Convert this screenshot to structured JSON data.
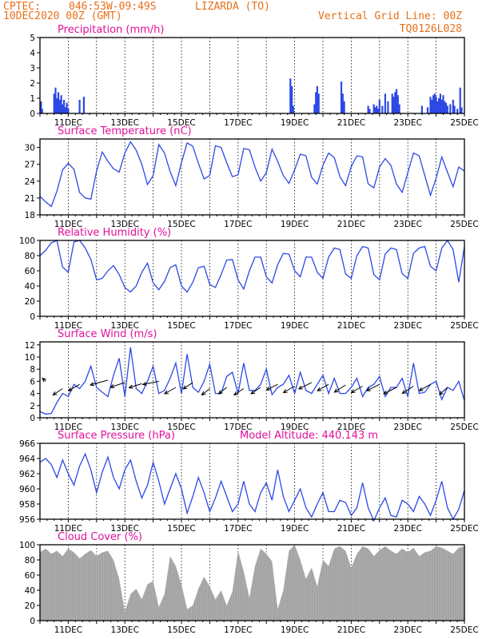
{
  "header": {
    "source": "CPTEC:",
    "coords": "046:53W-09:49S",
    "location": "LIZARDA (TO)",
    "date": "10DEC2020 00Z (GMT)",
    "grid_note": "Vertical Grid Line: 00Z",
    "code": "TQ0126L028"
  },
  "colors": {
    "header": "#e8701a",
    "title": "#e0109a",
    "line": "#2c49e6",
    "bar": "#2c49e6",
    "cloud": "#a3a3a3",
    "wind_arrow": "#000000"
  },
  "chart_data": [
    {
      "id": "precip",
      "type": "bar",
      "title": "Precipitation (mm/h)",
      "ylim": [
        0,
        5
      ],
      "yticks": [
        0,
        1,
        2,
        3,
        4,
        5
      ],
      "xlim_days": [
        10.0,
        25.0
      ],
      "xticks": [
        "11DEC",
        "13DEC",
        "15DEC",
        "17DEC",
        "19DEC",
        "21DEC",
        "23DEC",
        "25DEC"
      ],
      "x_days": [
        10.04,
        10.08,
        10.5,
        10.55,
        10.6,
        10.65,
        10.7,
        10.75,
        10.8,
        10.85,
        10.9,
        10.95,
        11.0,
        11.4,
        11.55,
        18.85,
        18.9,
        18.95,
        19.7,
        19.75,
        19.8,
        19.85,
        20.65,
        20.7,
        20.75,
        21.6,
        21.65,
        21.8,
        21.85,
        21.9,
        21.95,
        22.0,
        22.1,
        22.2,
        22.3,
        22.45,
        22.5,
        22.55,
        22.6,
        22.65,
        22.7,
        23.5,
        23.7,
        23.8,
        23.85,
        23.9,
        23.95,
        24.0,
        24.05,
        24.1,
        24.15,
        24.2,
        24.25,
        24.3,
        24.35,
        24.4,
        24.5,
        24.6,
        24.65,
        24.75,
        24.85,
        24.9
      ],
      "values": [
        0.8,
        0.3,
        1.3,
        1.7,
        1.0,
        1.4,
        0.9,
        1.2,
        0.6,
        0.9,
        0.4,
        0.7,
        0.3,
        0.9,
        1.1,
        2.3,
        1.8,
        0.5,
        0.6,
        1.4,
        1.8,
        1.3,
        2.1,
        1.3,
        0.8,
        0.5,
        0.3,
        0.6,
        0.4,
        0.5,
        0.3,
        0.9,
        0.5,
        1.3,
        0.8,
        1.3,
        1.1,
        1.4,
        1.6,
        1.2,
        0.6,
        0.5,
        0.4,
        1.1,
        0.9,
        1.2,
        1.3,
        1.1,
        0.8,
        1.0,
        1.3,
        0.9,
        1.2,
        0.8,
        0.7,
        0.5,
        0.6,
        0.9,
        0.5,
        0.3,
        1.7,
        0.4
      ]
    },
    {
      "id": "temp",
      "type": "line",
      "title": "Surface Temperature (nC)",
      "ylim": [
        18,
        31.5
      ],
      "yticks": [
        18,
        21,
        24,
        27,
        30
      ],
      "xlim_days": [
        10.0,
        25.0
      ],
      "xticks": [
        "11DEC",
        "13DEC",
        "15DEC",
        "17DEC",
        "19DEC",
        "21DEC",
        "23DEC",
        "25DEC"
      ],
      "x_days": [
        10.0,
        10.2,
        10.4,
        10.6,
        10.8,
        11.0,
        11.2,
        11.4,
        11.6,
        11.8,
        12.0,
        12.2,
        12.4,
        12.6,
        12.8,
        13.0,
        13.2,
        13.4,
        13.6,
        13.8,
        14.0,
        14.2,
        14.4,
        14.6,
        14.8,
        15.0,
        15.2,
        15.4,
        15.6,
        15.8,
        16.0,
        16.2,
        16.4,
        16.6,
        16.8,
        17.0,
        17.2,
        17.4,
        17.6,
        17.8,
        18.0,
        18.2,
        18.4,
        18.6,
        18.8,
        19.0,
        19.2,
        19.4,
        19.6,
        19.8,
        20.0,
        20.2,
        20.4,
        20.6,
        20.8,
        21.0,
        21.2,
        21.4,
        21.6,
        21.8,
        22.0,
        22.2,
        22.4,
        22.6,
        22.8,
        23.0,
        23.2,
        23.4,
        23.6,
        23.8,
        24.0,
        24.2,
        24.4,
        24.6,
        24.8,
        25.0
      ],
      "values": [
        21.3,
        20.3,
        19.5,
        22.2,
        26.0,
        27.2,
        26.1,
        22.0,
        21.0,
        20.8,
        25.8,
        29.2,
        27.5,
        26.2,
        25.6,
        29.0,
        31.0,
        29.5,
        27.0,
        23.4,
        25.0,
        30.5,
        29.0,
        25.7,
        23.2,
        27.3,
        30.8,
        30.2,
        27.2,
        24.4,
        25.0,
        30.3,
        30.0,
        27.3,
        24.8,
        25.1,
        29.8,
        29.6,
        26.5,
        24.0,
        25.5,
        29.7,
        27.5,
        25.0,
        23.6,
        26.0,
        28.8,
        28.5,
        24.7,
        23.5,
        26.8,
        29.0,
        28.2,
        24.8,
        23.2,
        26.6,
        28.5,
        28.3,
        23.5,
        22.8,
        26.5,
        28.0,
        26.8,
        23.5,
        22.0,
        25.5,
        29.0,
        28.5,
        25.0,
        21.5,
        24.5,
        28.3,
        25.6,
        23.0,
        26.5,
        25.8
      ]
    },
    {
      "id": "rh",
      "type": "line",
      "title": "Relative Humidity (%)",
      "ylim": [
        0,
        100
      ],
      "yticks": [
        0,
        20,
        40,
        60,
        80,
        100
      ],
      "xlim_days": [
        10.0,
        25.0
      ],
      "xticks": [
        "11DEC",
        "13DEC",
        "15DEC",
        "17DEC",
        "19DEC",
        "21DEC",
        "23DEC",
        "25DEC"
      ],
      "x_days": [
        10.0,
        10.2,
        10.4,
        10.6,
        10.8,
        11.0,
        11.2,
        11.4,
        11.6,
        11.8,
        12.0,
        12.2,
        12.4,
        12.6,
        12.8,
        13.0,
        13.2,
        13.4,
        13.6,
        13.8,
        14.0,
        14.2,
        14.4,
        14.6,
        14.8,
        15.0,
        15.2,
        15.4,
        15.6,
        15.8,
        16.0,
        16.2,
        16.4,
        16.6,
        16.8,
        17.0,
        17.2,
        17.4,
        17.6,
        17.8,
        18.0,
        18.2,
        18.4,
        18.6,
        18.8,
        19.0,
        19.2,
        19.4,
        19.6,
        19.8,
        20.0,
        20.2,
        20.4,
        20.6,
        20.8,
        21.0,
        21.2,
        21.4,
        21.6,
        21.8,
        22.0,
        22.2,
        22.4,
        22.6,
        22.8,
        23.0,
        23.2,
        23.4,
        23.6,
        23.8,
        24.0,
        24.2,
        24.4,
        24.6,
        24.8,
        25.0
      ],
      "values": [
        80,
        87,
        97,
        100,
        65,
        58,
        98,
        100,
        90,
        75,
        48,
        50,
        60,
        67,
        55,
        38,
        32,
        40,
        58,
        70,
        44,
        35,
        46,
        64,
        68,
        40,
        32,
        45,
        64,
        66,
        42,
        38,
        55,
        74,
        75,
        48,
        36,
        60,
        78,
        78,
        52,
        44,
        68,
        83,
        82,
        60,
        52,
        78,
        78,
        58,
        50,
        78,
        90,
        88,
        56,
        50,
        80,
        92,
        90,
        55,
        48,
        82,
        90,
        88,
        56,
        50,
        83,
        90,
        92,
        66,
        60,
        90,
        100,
        88,
        45,
        92
      ]
    },
    {
      "id": "wind",
      "type": "line",
      "title": "Surface Wind (m/s)",
      "ylim": [
        0,
        12.5
      ],
      "yticks": [
        0,
        2,
        4,
        6,
        8,
        10,
        12
      ],
      "xlim_days": [
        10.0,
        25.0
      ],
      "xticks": [
        "11DEC",
        "13DEC",
        "15DEC",
        "17DEC",
        "19DEC",
        "21DEC",
        "23DEC",
        "25DEC"
      ],
      "x_days": [
        10.0,
        10.2,
        10.4,
        10.6,
        10.8,
        11.0,
        11.2,
        11.4,
        11.6,
        11.8,
        12.0,
        12.2,
        12.4,
        12.6,
        12.8,
        13.0,
        13.2,
        13.4,
        13.6,
        13.8,
        14.0,
        14.2,
        14.4,
        14.6,
        14.8,
        15.0,
        15.2,
        15.4,
        15.6,
        15.8,
        16.0,
        16.2,
        16.4,
        16.6,
        16.8,
        17.0,
        17.2,
        17.4,
        17.6,
        17.8,
        18.0,
        18.2,
        18.4,
        18.6,
        18.8,
        19.0,
        19.2,
        19.4,
        19.6,
        19.8,
        20.0,
        20.2,
        20.4,
        20.6,
        20.8,
        21.0,
        21.2,
        21.4,
        21.6,
        21.8,
        22.0,
        22.2,
        22.4,
        22.6,
        22.8,
        23.0,
        23.2,
        23.4,
        23.6,
        23.8,
        24.0,
        24.2,
        24.4,
        24.6,
        24.8,
        25.0
      ],
      "values": [
        1.0,
        0.6,
        0.7,
        2.5,
        4.0,
        3.5,
        5.5,
        4.8,
        6.0,
        8.5,
        5.0,
        4.2,
        3.5,
        7.0,
        9.8,
        3.5,
        11.6,
        4.8,
        4.0,
        6.0,
        8.5,
        4.0,
        4.5,
        6.5,
        9.0,
        4.0,
        10.5,
        5.0,
        4.2,
        6.0,
        8.8,
        4.0,
        4.0,
        6.8,
        7.5,
        4.0,
        9.0,
        4.5,
        4.5,
        5.5,
        8.0,
        3.8,
        5.0,
        5.5,
        7.0,
        4.0,
        7.5,
        4.5,
        4.0,
        5.5,
        7.0,
        4.0,
        6.5,
        4.0,
        4.0,
        5.0,
        6.5,
        3.5,
        5.0,
        5.5,
        6.8,
        3.5,
        5.0,
        5.0,
        6.5,
        3.5,
        9.0,
        4.0,
        4.2,
        5.5,
        6.0,
        3.0,
        5.0,
        4.5,
        6.0,
        2.8
      ]
    },
    {
      "id": "pressure",
      "type": "line",
      "title": "Surface Pressure (hPa)",
      "annotation": "Model Altitude: 440.143 m",
      "ylim": [
        956,
        966
      ],
      "yticks": [
        956,
        958,
        960,
        962,
        964,
        966
      ],
      "xlim_days": [
        10.0,
        25.0
      ],
      "xticks": [
        "11DEC",
        "13DEC",
        "15DEC",
        "17DEC",
        "19DEC",
        "21DEC",
        "23DEC",
        "25DEC"
      ],
      "x_days": [
        10.0,
        10.2,
        10.4,
        10.6,
        10.8,
        11.0,
        11.2,
        11.4,
        11.6,
        11.8,
        12.0,
        12.2,
        12.4,
        12.6,
        12.8,
        13.0,
        13.2,
        13.4,
        13.6,
        13.8,
        14.0,
        14.2,
        14.4,
        14.6,
        14.8,
        15.0,
        15.2,
        15.4,
        15.6,
        15.8,
        16.0,
        16.2,
        16.4,
        16.6,
        16.8,
        17.0,
        17.2,
        17.4,
        17.6,
        17.8,
        18.0,
        18.2,
        18.4,
        18.6,
        18.8,
        19.0,
        19.2,
        19.4,
        19.6,
        19.8,
        20.0,
        20.2,
        20.4,
        20.6,
        20.8,
        21.0,
        21.2,
        21.4,
        21.6,
        21.8,
        22.0,
        22.2,
        22.4,
        22.6,
        22.8,
        23.0,
        23.2,
        23.4,
        23.6,
        23.8,
        24.0,
        24.2,
        24.4,
        24.6,
        24.8,
        25.0
      ],
      "values": [
        963.5,
        964.0,
        963.2,
        961.5,
        963.8,
        962.0,
        960.5,
        963.0,
        964.6,
        962.5,
        959.5,
        962.2,
        964.2,
        961.5,
        960.0,
        962.5,
        963.8,
        961.0,
        958.8,
        960.5,
        963.5,
        961.0,
        958.0,
        960.0,
        962.0,
        960.0,
        956.8,
        959.0,
        961.5,
        959.5,
        957.0,
        958.8,
        961.0,
        959.0,
        957.0,
        958.0,
        961.0,
        958.0,
        957.0,
        959.5,
        960.8,
        958.5,
        962.5,
        959.0,
        957.0,
        958.5,
        960.0,
        957.5,
        956.3,
        958.0,
        959.5,
        957.0,
        957.0,
        958.5,
        958.2,
        956.5,
        957.5,
        960.8,
        957.5,
        955.8,
        957.5,
        958.8,
        956.5,
        956.3,
        958.5,
        958.0,
        957.0,
        959.0,
        958.0,
        956.5,
        958.5,
        961.0,
        957.5,
        956.0,
        957.3,
        959.8
      ]
    },
    {
      "id": "cloud",
      "type": "area",
      "title": "Cloud Cover (%)",
      "ylim": [
        0,
        100
      ],
      "yticks": [
        0,
        20,
        40,
        60,
        80,
        100
      ],
      "xlim_days": [
        10.0,
        25.0
      ],
      "xticks": [
        "11DEC",
        "13DEC",
        "15DEC",
        "17DEC",
        "19DEC",
        "21DEC",
        "23DEC",
        "25DEC"
      ],
      "x_days": [
        10.0,
        10.2,
        10.4,
        10.6,
        10.8,
        11.0,
        11.2,
        11.4,
        11.6,
        11.8,
        12.0,
        12.2,
        12.4,
        12.6,
        12.8,
        13.0,
        13.2,
        13.4,
        13.6,
        13.8,
        14.0,
        14.2,
        14.4,
        14.6,
        14.8,
        15.0,
        15.2,
        15.4,
        15.6,
        15.8,
        16.0,
        16.2,
        16.4,
        16.6,
        16.8,
        17.0,
        17.2,
        17.4,
        17.6,
        17.8,
        18.0,
        18.2,
        18.4,
        18.6,
        18.8,
        19.0,
        19.2,
        19.4,
        19.6,
        19.8,
        20.0,
        20.2,
        20.4,
        20.6,
        20.8,
        21.0,
        21.2,
        21.4,
        21.6,
        21.8,
        22.0,
        22.2,
        22.4,
        22.6,
        22.8,
        23.0,
        23.2,
        23.4,
        23.6,
        23.8,
        24.0,
        24.2,
        24.4,
        24.6,
        24.8,
        25.0
      ],
      "values": [
        90,
        95,
        88,
        92,
        85,
        95,
        90,
        82,
        88,
        93,
        85,
        90,
        92,
        80,
        55,
        12,
        35,
        42,
        28,
        48,
        52,
        18,
        35,
        85,
        72,
        48,
        15,
        20,
        42,
        58,
        45,
        28,
        40,
        20,
        38,
        92,
        65,
        30,
        72,
        95,
        88,
        78,
        15,
        40,
        92,
        100,
        80,
        55,
        70,
        45,
        80,
        72,
        95,
        98,
        92,
        70,
        88,
        98,
        95,
        85,
        93,
        98,
        92,
        88,
        95,
        90,
        96,
        85,
        90,
        92,
        98,
        96,
        92,
        88,
        96,
        98
      ]
    }
  ],
  "wind_arrows": {
    "x_days": [
      10.2,
      10.8,
      11.4,
      12.4,
      13.0,
      13.6,
      14.2,
      14.8,
      15.4,
      16.0,
      16.6,
      17.2,
      17.8,
      18.4,
      19.0,
      19.6,
      20.2,
      20.8,
      21.4,
      22.0,
      22.6,
      23.2,
      23.8,
      24.4
    ],
    "y_ms": [
      6.0,
      4.8,
      5.5,
      6.2,
      5.8,
      5.6,
      6.0,
      5.0,
      5.8,
      4.8,
      5.0,
      4.8,
      5.0,
      5.5,
      5.2,
      5.8,
      5.5,
      5.4,
      5.2,
      5.5,
      5.0,
      5.2,
      5.5,
      5.0
    ],
    "dx": [
      -4,
      -12,
      -14,
      -22,
      -18,
      -16,
      -20,
      -14,
      -12,
      -10,
      -10,
      -12,
      -12,
      -14,
      -14,
      -16,
      -14,
      -14,
      -14,
      -16,
      -16,
      -14,
      -14,
      -10
    ],
    "dy": [
      -4,
      8,
      8,
      6,
      6,
      5,
      4,
      8,
      8,
      8,
      8,
      8,
      8,
      7,
      8,
      8,
      8,
      9,
      8,
      8,
      8,
      9,
      8,
      9
    ]
  }
}
